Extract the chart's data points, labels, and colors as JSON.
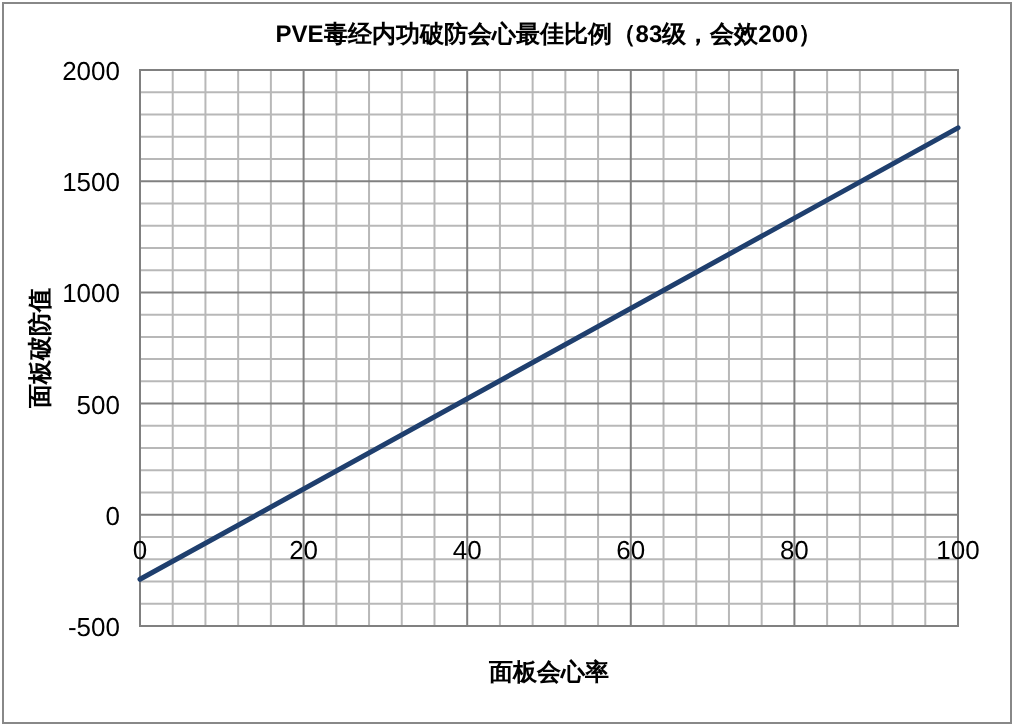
{
  "chart_data": {
    "type": "line",
    "title": "PVE毒经内功破防会心最佳比例（83级，会效200）",
    "xlabel": "面板会心率",
    "ylabel": "面板破防值",
    "x": [
      0,
      100
    ],
    "series": [
      {
        "color": "#1f3f6e",
        "values": [
          -290,
          1740
        ]
      }
    ],
    "xlim": [
      0,
      100
    ],
    "xticks": [
      0,
      20,
      40,
      60,
      80,
      100
    ],
    "ylim": [
      -500,
      2000
    ],
    "yticks": [
      -500,
      0,
      500,
      1000,
      1500,
      2000
    ],
    "grid": true,
    "marker": "none",
    "line_style": "solid"
  }
}
